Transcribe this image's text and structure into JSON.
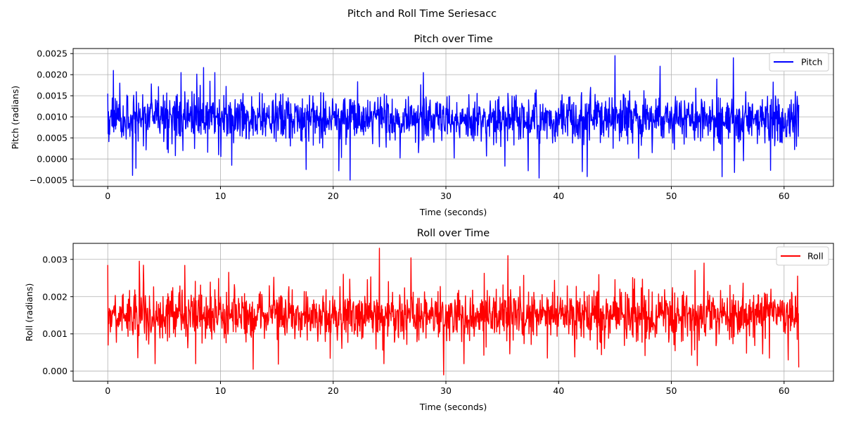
{
  "figure": {
    "suptitle": "Pitch and Roll Time Seriesacc"
  },
  "chart_data": [
    {
      "type": "line",
      "title": "Pitch over Time",
      "xlabel": "Time (seconds)",
      "ylabel": "Pitch (radians)",
      "xlim": [
        -3.07,
        64.38
      ],
      "ylim": [
        -0.00065,
        0.00262
      ],
      "x_ticks": [
        0,
        10,
        20,
        30,
        40,
        50,
        60
      ],
      "x_tick_labels": [
        "0",
        "10",
        "20",
        "30",
        "40",
        "50",
        "60"
      ],
      "y_ticks": [
        -0.0005,
        0.0,
        0.0005,
        0.001,
        0.0015,
        0.002,
        0.0025
      ],
      "y_tick_labels": [
        "−0.0005",
        "0.0000",
        "0.0005",
        "0.0010",
        "0.0015",
        "0.0020",
        "0.0025"
      ],
      "grid": true,
      "legend_position": "top-right",
      "series": [
        {
          "name": "Pitch",
          "color": "#0000ff",
          "x_start": 0,
          "x_end": 61.3,
          "typical_center": 0.00095,
          "typical_band": [
            0.0003,
            0.0016
          ],
          "spikes": [
            {
              "x": 0.0,
              "y": 0.00155
            },
            {
              "x": 0.0,
              "y": 0.0006
            },
            {
              "x": 0.5,
              "y": 0.0021
            },
            {
              "x": 2.5,
              "y": -0.00022
            },
            {
              "x": 6.5,
              "y": 0.00205
            },
            {
              "x": 9.5,
              "y": 0.00205
            },
            {
              "x": 11.0,
              "y": -0.00015
            },
            {
              "x": 17.6,
              "y": -0.00025
            },
            {
              "x": 20.5,
              "y": -0.00028
            },
            {
              "x": 21.5,
              "y": -0.0005
            },
            {
              "x": 28.0,
              "y": 0.00205
            },
            {
              "x": 37.3,
              "y": -0.00028
            },
            {
              "x": 42.1,
              "y": -0.0003
            },
            {
              "x": 45.0,
              "y": 0.00245
            },
            {
              "x": 49.0,
              "y": 0.0022
            },
            {
              "x": 54.5,
              "y": -0.00042
            },
            {
              "x": 55.5,
              "y": 0.0024
            },
            {
              "x": 55.6,
              "y": -0.00032
            },
            {
              "x": 58.8,
              "y": -0.00027
            },
            {
              "x": 61.0,
              "y": 0.0016
            },
            {
              "x": 61.1,
              "y": 0.0003
            }
          ]
        }
      ]
    },
    {
      "type": "line",
      "title": "Roll over Time",
      "xlabel": "Time (seconds)",
      "ylabel": "Roll (radians)",
      "xlim": [
        -3.07,
        64.38
      ],
      "ylim": [
        -0.00027,
        0.00343
      ],
      "x_ticks": [
        0,
        10,
        20,
        30,
        40,
        50,
        60
      ],
      "x_tick_labels": [
        "0",
        "10",
        "20",
        "30",
        "40",
        "50",
        "60"
      ],
      "y_ticks": [
        0.0,
        0.001,
        0.002,
        0.003
      ],
      "y_tick_labels": [
        "0.000",
        "0.001",
        "0.002",
        "0.003"
      ],
      "grid": true,
      "legend_position": "top-right",
      "series": [
        {
          "name": "Roll",
          "color": "#ff0000",
          "x_start": 0,
          "x_end": 61.3,
          "typical_center": 0.0015,
          "typical_band": [
            0.0008,
            0.0023
          ],
          "spikes": [
            {
              "x": 0.0,
              "y": 0.00285
            },
            {
              "x": 0.0,
              "y": 0.0007
            },
            {
              "x": 2.8,
              "y": 0.00295
            },
            {
              "x": 4.2,
              "y": 0.0002
            },
            {
              "x": 7.8,
              "y": 0.0002
            },
            {
              "x": 12.9,
              "y": 5e-05
            },
            {
              "x": 24.1,
              "y": 0.0033
            },
            {
              "x": 24.5,
              "y": 0.0002
            },
            {
              "x": 29.8,
              "y": -0.0001
            },
            {
              "x": 31.6,
              "y": 0.0002
            },
            {
              "x": 35.5,
              "y": 0.0031
            },
            {
              "x": 39.0,
              "y": 0.00035
            },
            {
              "x": 52.3,
              "y": 0.00015
            },
            {
              "x": 52.9,
              "y": 0.0029
            },
            {
              "x": 58.7,
              "y": 0.00035
            },
            {
              "x": 61.2,
              "y": 0.00255
            },
            {
              "x": 61.3,
              "y": 0.0001
            }
          ]
        }
      ]
    }
  ]
}
